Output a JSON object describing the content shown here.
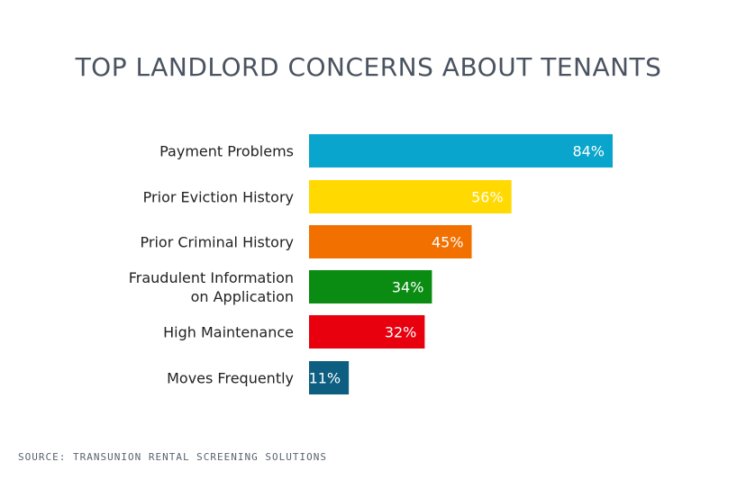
{
  "chart_data": {
    "type": "bar",
    "orientation": "horizontal",
    "title": "TOP LANDLORD CONCERNS ABOUT TENANTS",
    "categories": [
      [
        "Payment Problems"
      ],
      [
        "Prior Eviction History"
      ],
      [
        "Prior Criminal History"
      ],
      [
        "Fraudulent Information",
        "on Application"
      ],
      [
        "High Maintenance"
      ],
      [
        "Moves Frequently"
      ]
    ],
    "values": [
      84,
      56,
      45,
      34,
      32,
      11
    ],
    "value_labels": [
      "84%",
      "56%",
      "45%",
      "34%",
      "32%",
      "11%"
    ],
    "colors": [
      "#0aa5cc",
      "#ffd900",
      "#f27000",
      "#0a8c13",
      "#e8000e",
      "#0d5e80"
    ],
    "xlim": [
      0,
      100
    ],
    "grid": false,
    "legend": "none"
  },
  "footer": {
    "source": "SOURCE: TRANSUNION RENTAL SCREENING SOLUTIONS"
  }
}
